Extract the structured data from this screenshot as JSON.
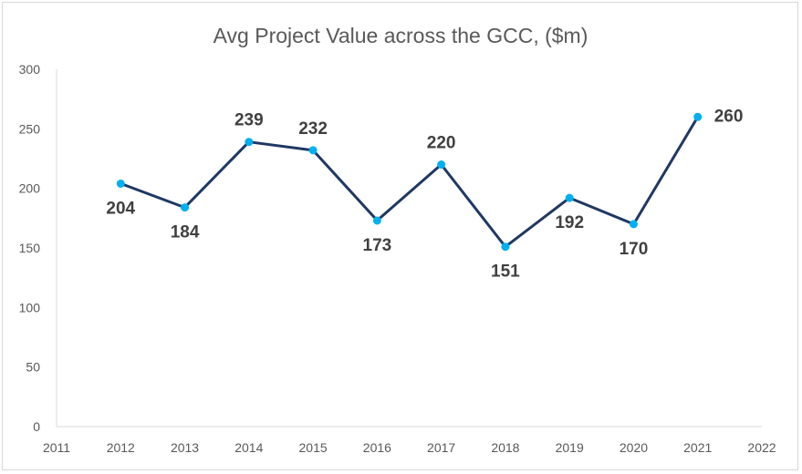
{
  "chart_data": {
    "type": "line",
    "title": "Avg Project Value across the GCC, ($m)",
    "xlabel": "",
    "ylabel": "",
    "x_ticks": [
      "2011",
      "2012",
      "2013",
      "2014",
      "2015",
      "2016",
      "2017",
      "2018",
      "2019",
      "2020",
      "2021",
      "2022"
    ],
    "y_ticks": [
      "0",
      "50",
      "100",
      "150",
      "200",
      "250",
      "300"
    ],
    "ylim": [
      0,
      300
    ],
    "xlim": [
      2011,
      2022
    ],
    "grid": false,
    "legend": "none",
    "series": [
      {
        "x": [
          2012,
          2013,
          2014,
          2015,
          2016,
          2017,
          2018,
          2019,
          2020,
          2021
        ],
        "values": [
          204,
          184,
          239,
          232,
          173,
          220,
          151,
          192,
          170,
          260
        ],
        "line_color": "#1f3864",
        "marker_color": "#00b0f0"
      }
    ],
    "data_labels": [
      "204",
      "184",
      "239",
      "232",
      "173",
      "220",
      "151",
      "192",
      "170",
      "260"
    ],
    "data_label_positions": [
      "below",
      "below",
      "above",
      "above",
      "below",
      "above",
      "below",
      "below",
      "below",
      "right"
    ]
  }
}
